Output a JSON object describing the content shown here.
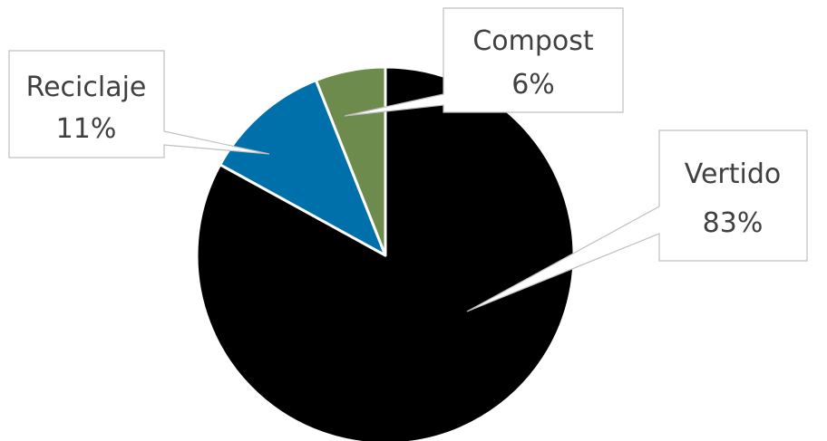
{
  "chart_data": {
    "type": "pie",
    "title": "",
    "categories": [
      "Vertido",
      "Reciclaje",
      "Compost"
    ],
    "values": [
      83,
      11,
      6
    ],
    "labels": [
      "83%",
      "11%",
      "6%"
    ],
    "colors": [
      "#000000",
      "#0070AA",
      "#6E8B4E"
    ],
    "legend": "none",
    "data_labels": "callouts"
  }
}
